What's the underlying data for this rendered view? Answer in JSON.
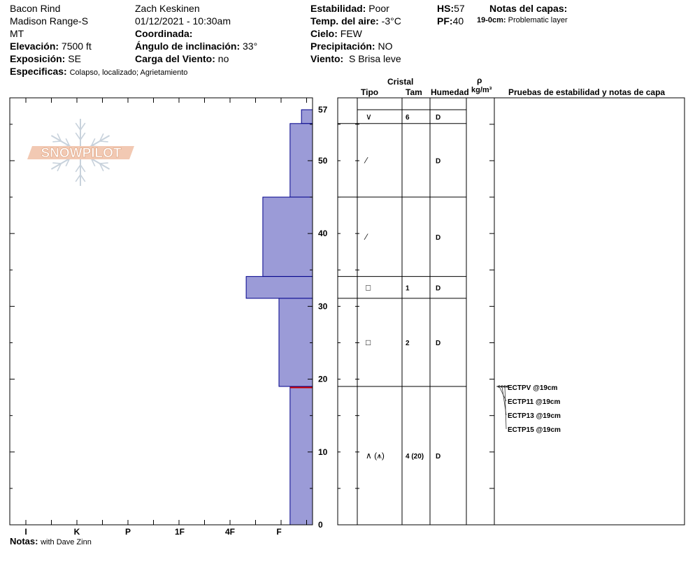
{
  "header": {
    "location": [
      "Bacon Rind",
      "Madison Range-S",
      "MT"
    ],
    "observer": "Zach Keskinen",
    "datetime": "01/12/2021 - 10:30am",
    "elevation_label": "Elevación:",
    "elevation": "7500 ft",
    "aspect_label": "Exposición:",
    "aspect": "SE",
    "coord_label": "Coordinada:",
    "slope_label": "Ángulo de inclinación:",
    "slope": "33°",
    "wind_load_label": "Carga del Viento:",
    "wind_load": "no",
    "specifics_label": "Especificas:",
    "specifics": "Colapso, localizado;  Agrietamiento",
    "stability_label": "Estabilidad:",
    "stability": "Poor",
    "air_temp_label": "Temp. del aire:",
    "air_temp": "-3°C",
    "sky_label": "Cielo:",
    "sky": "FEW",
    "precip_label": "Precipitación:",
    "precip": "NO",
    "wind_label": "Viento:",
    "wind": "S Brisa leve",
    "hs_label": "HS:",
    "hs": "57",
    "pf_label": "PF:",
    "pf": "40",
    "layer_notes_label": "Notas del capas:",
    "layer_note_range": "19-0cm:",
    "layer_note": "Problematic layer"
  },
  "logo_text": "SNOWPILOT",
  "notes_label": "Notas:",
  "notes": "with Dave Zinn",
  "columns": {
    "crystal": "Cristal",
    "type": "Tipo",
    "size": "Tam",
    "moisture": "Humedad",
    "density_symbol": "ρ",
    "density_unit": "kg/m³",
    "tests": "Pruebas de estabilidad y notas de capa"
  },
  "chart_data": {
    "type": "bar",
    "orientation": "horizontal",
    "x_categories": [
      "I",
      "K",
      "P",
      "1F",
      "4F",
      "F"
    ],
    "ylim": [
      0,
      57
    ],
    "y_ticks": [
      0,
      10,
      20,
      30,
      40,
      50,
      57
    ],
    "layers": [
      {
        "top": 57,
        "bottom": 55.1,
        "hardness_index": 0.33
      },
      {
        "top": 55.1,
        "bottom": 45,
        "hardness_index": 0.67
      },
      {
        "top": 45,
        "bottom": 34.1,
        "hardness_index": 1.33
      },
      {
        "top": 34.1,
        "bottom": 31.1,
        "hardness_index": 1.67
      },
      {
        "top": 31.1,
        "bottom": 19,
        "hardness_index": 1.0
      },
      {
        "top": 19,
        "bottom": 0,
        "hardness_index": 0.67
      }
    ],
    "weak_layer_depth": 19,
    "weak_layer_color": "#cc0000",
    "bar_color": "#9b9bd7",
    "bar_border": "#00008b"
  },
  "layer_rows": [
    {
      "top": 57,
      "bottom": 55.1,
      "type": "∨",
      "size": "6",
      "moisture": "D"
    },
    {
      "top": 55.1,
      "bottom": 45,
      "type": "⁄",
      "size": "",
      "moisture": "D"
    },
    {
      "top": 45,
      "bottom": 34.1,
      "type": "⁄",
      "size": "",
      "moisture": "D"
    },
    {
      "top": 34.1,
      "bottom": 31.1,
      "type": "□",
      "size": "1",
      "moisture": "D"
    },
    {
      "top": 31.1,
      "bottom": 19,
      "type": "□",
      "size": "2",
      "moisture": "D"
    },
    {
      "top": 19,
      "bottom": 0,
      "type": "∧ (⩚)",
      "size": "4 (20)",
      "moisture": "D"
    }
  ],
  "stability_tests": [
    "ECTPV @19cm",
    "ECTP11 @19cm",
    "ECTP13 @19cm",
    "ECTP15 @19cm"
  ],
  "test_depth": 19
}
